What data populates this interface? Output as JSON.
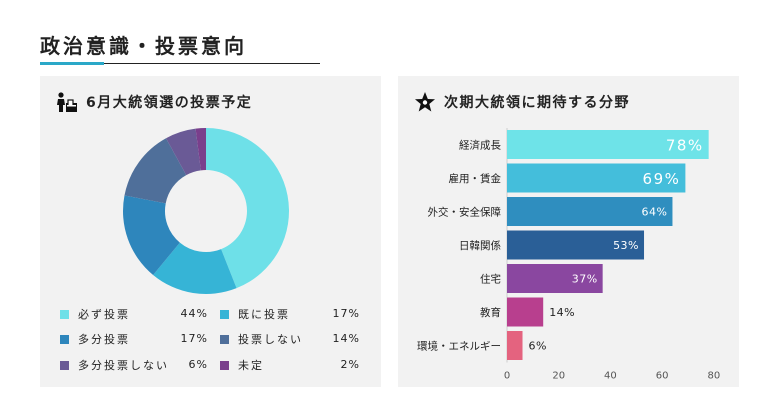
{
  "page": {
    "title": "政治意識・投票意向"
  },
  "donut_panel": {
    "title": "6月大統領選の投票予定",
    "icon": "voter-ballot-icon"
  },
  "bar_panel": {
    "title": "次期大統領に期待する分野",
    "icon": "star-icon"
  },
  "chart_data": [
    {
      "type": "pie",
      "title": "6月大統領選の投票予定",
      "donut": true,
      "labels": [
        "必ず投票",
        "既に投票",
        "多分投票",
        "投票しない",
        "多分投票しない",
        "未定"
      ],
      "values": [
        44,
        17,
        17,
        14,
        6,
        2
      ],
      "value_labels": [
        "44%",
        "17%",
        "17%",
        "14%",
        "6%",
        "2%"
      ],
      "colors": [
        "#6ee0e8",
        "#36b4d6",
        "#2e86bc",
        "#4f6f9a",
        "#6a5a96",
        "#7a3f8c"
      ],
      "legend_position": "bottom"
    },
    {
      "type": "bar",
      "orientation": "horizontal",
      "title": "次期大統領に期待する分野",
      "categories": [
        "経済成長",
        "雇用・賃金",
        "外交・安全保障",
        "日韓関係",
        "住宅",
        "教育",
        "環境・エネルギー"
      ],
      "values": [
        78,
        69,
        64,
        53,
        37,
        14,
        6
      ],
      "value_labels": [
        "78%",
        "69%",
        "64%",
        "53%",
        "37%",
        "14%",
        "6%"
      ],
      "colors": [
        "#6ee3e8",
        "#44bedb",
        "#2f8ebf",
        "#2a5f97",
        "#8a47a0",
        "#b83f8e",
        "#e4637f"
      ],
      "x_ticks": [
        "0",
        "20",
        "40",
        "60",
        "80"
      ],
      "xlim": [
        0,
        82
      ],
      "grid": false
    }
  ]
}
